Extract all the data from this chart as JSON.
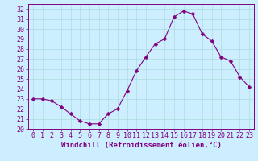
{
  "hours": [
    0,
    1,
    2,
    3,
    4,
    5,
    6,
    7,
    8,
    9,
    10,
    11,
    12,
    13,
    14,
    15,
    16,
    17,
    18,
    19,
    20,
    21,
    22,
    23
  ],
  "values": [
    23.0,
    23.0,
    22.8,
    22.2,
    21.5,
    20.8,
    20.5,
    20.5,
    21.5,
    22.0,
    23.8,
    25.8,
    27.2,
    28.5,
    29.0,
    31.2,
    31.8,
    31.5,
    29.5,
    28.8,
    27.2,
    26.8,
    25.2,
    24.2
  ],
  "line_color": "#800080",
  "marker": "D",
  "marker_size": 2.5,
  "bg_color": "#cceeff",
  "grid_color": "#aadddd",
  "xlabel": "Windchill (Refroidissement éolien,°C)",
  "xlim": [
    -0.5,
    23.5
  ],
  "ylim": [
    20,
    32.5
  ],
  "yticks": [
    20,
    21,
    22,
    23,
    24,
    25,
    26,
    27,
    28,
    29,
    30,
    31,
    32
  ],
  "xtick_labels": [
    "0",
    "1",
    "2",
    "3",
    "4",
    "5",
    "6",
    "7",
    "8",
    "9",
    "10",
    "11",
    "12",
    "13",
    "14",
    "15",
    "16",
    "17",
    "18",
    "19",
    "20",
    "21",
    "22",
    "23"
  ],
  "label_color": "#800080",
  "axis_label_fontsize": 6.5,
  "tick_fontsize": 6.0
}
